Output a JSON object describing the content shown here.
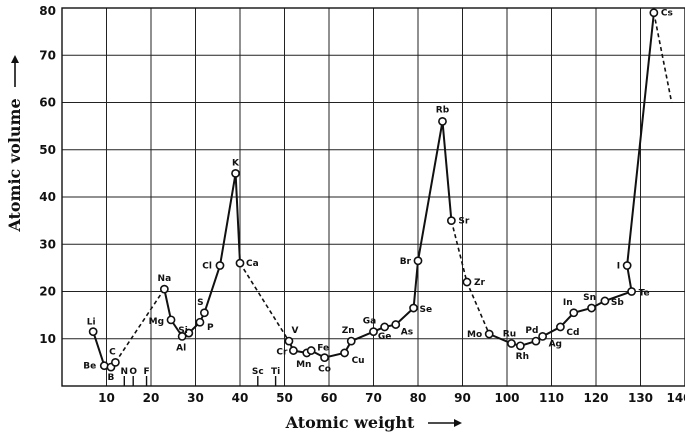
{
  "chart_data": {
    "type": "line",
    "xlabel": "Atomic weight",
    "ylabel": "Atomic volume",
    "xlim": [
      0,
      140
    ],
    "ylim": [
      0,
      80
    ],
    "xticks": [
      10,
      20,
      30,
      40,
      50,
      60,
      70,
      80,
      90,
      100,
      110,
      120,
      130,
      140
    ],
    "yticks": [
      10,
      20,
      30,
      40,
      50,
      60,
      70,
      80
    ],
    "grid": true,
    "series": [
      {
        "points": [
          {
            "label": "Li",
            "x": 7,
            "y": 11.5
          },
          {
            "label": "Be",
            "x": 9.5,
            "y": 4.3
          },
          {
            "label": "B",
            "x": 11,
            "y": 4.0
          },
          {
            "label": "C",
            "x": 12,
            "y": 5.0
          },
          {
            "label": "Na",
            "x": 23,
            "y": 20.5
          },
          {
            "label": "Mg",
            "x": 24.5,
            "y": 14.0
          },
          {
            "label": "Al",
            "x": 27,
            "y": 10.5
          },
          {
            "label": "Si",
            "x": 28.5,
            "y": 11.2
          },
          {
            "label": "P",
            "x": 31,
            "y": 13.5
          },
          {
            "label": "S",
            "x": 32,
            "y": 15.5
          },
          {
            "label": "Cl",
            "x": 35.5,
            "y": 25.5
          },
          {
            "label": "K",
            "x": 39,
            "y": 45.0
          },
          {
            "label": "Ca",
            "x": 40,
            "y": 26.0
          },
          {
            "label": "V",
            "x": 51,
            "y": 9.5
          },
          {
            "label": "Cr",
            "x": 52,
            "y": 7.5
          },
          {
            "label": "Mn",
            "x": 55,
            "y": 7.0
          },
          {
            "label": "Fe",
            "x": 56,
            "y": 7.5
          },
          {
            "label": "Co",
            "x": 59,
            "y": 6.0
          },
          {
            "label": "Cu",
            "x": 63.5,
            "y": 7.0
          },
          {
            "label": "Zn",
            "x": 65,
            "y": 9.5
          },
          {
            "label": "Ga",
            "x": 70,
            "y": 11.5
          },
          {
            "label": "Ge",
            "x": 72.5,
            "y": 12.5
          },
          {
            "label": "As",
            "x": 75,
            "y": 13.0
          },
          {
            "label": "Se",
            "x": 79,
            "y": 16.5
          },
          {
            "label": "Br",
            "x": 80,
            "y": 26.5
          },
          {
            "label": "Rb",
            "x": 85.5,
            "y": 56.0
          },
          {
            "label": "Sr",
            "x": 87.5,
            "y": 35.0
          },
          {
            "label": "Zr",
            "x": 91,
            "y": 22.0
          },
          {
            "label": "Mo",
            "x": 96,
            "y": 11.0
          },
          {
            "label": "Ru",
            "x": 101,
            "y": 9.0
          },
          {
            "label": "Rh",
            "x": 103,
            "y": 8.5
          },
          {
            "label": "Pd",
            "x": 106.5,
            "y": 9.5
          },
          {
            "label": "Ag",
            "x": 108,
            "y": 10.5
          },
          {
            "label": "Cd",
            "x": 112,
            "y": 12.5
          },
          {
            "label": "In",
            "x": 115,
            "y": 15.5
          },
          {
            "label": "Sn",
            "x": 119,
            "y": 16.5
          },
          {
            "label": "Sb",
            "x": 122,
            "y": 18.0
          },
          {
            "label": "Te",
            "x": 128,
            "y": 20.0
          },
          {
            "label": "I",
            "x": 127,
            "y": 25.5
          },
          {
            "label": "Cs",
            "x": 133,
            "y": 79.0
          }
        ]
      }
    ],
    "segments": [
      {
        "style": "solid",
        "path": [
          "Li",
          "Be",
          "B",
          "C"
        ]
      },
      {
        "style": "dashed",
        "path": [
          "C",
          "Na"
        ]
      },
      {
        "style": "solid",
        "path": [
          "Na",
          "Mg",
          "Al",
          "Si",
          "P",
          "S",
          "Cl",
          "K",
          "Ca"
        ]
      },
      {
        "style": "dashed",
        "path": [
          "Ca",
          "V"
        ]
      },
      {
        "style": "solid",
        "path": [
          "V",
          "Cr",
          "Mn",
          "Fe",
          "Co",
          "Cu",
          "Zn",
          "Ga",
          "Ge",
          "As",
          "Se",
          "Br",
          "Rb",
          "Sr"
        ]
      },
      {
        "style": "dashed",
        "path": [
          "Sr",
          "Zr",
          "Mo"
        ]
      },
      {
        "style": "solid",
        "path": [
          "Mo",
          "Ru",
          "Rh",
          "Pd",
          "Ag",
          "Cd",
          "In",
          "Sn",
          "Sb",
          "Te",
          "I",
          "Cs"
        ]
      }
    ],
    "tail": {
      "style": "dashed",
      "from": "Cs",
      "to": {
        "x": 137,
        "y": 60
      }
    },
    "missing_elements": [
      {
        "label": "N",
        "x": 14
      },
      {
        "label": "O",
        "x": 16
      },
      {
        "label": "F",
        "x": 19
      },
      {
        "label": "Sc",
        "x": 44
      },
      {
        "label": "Ti",
        "x": 48
      }
    ]
  }
}
